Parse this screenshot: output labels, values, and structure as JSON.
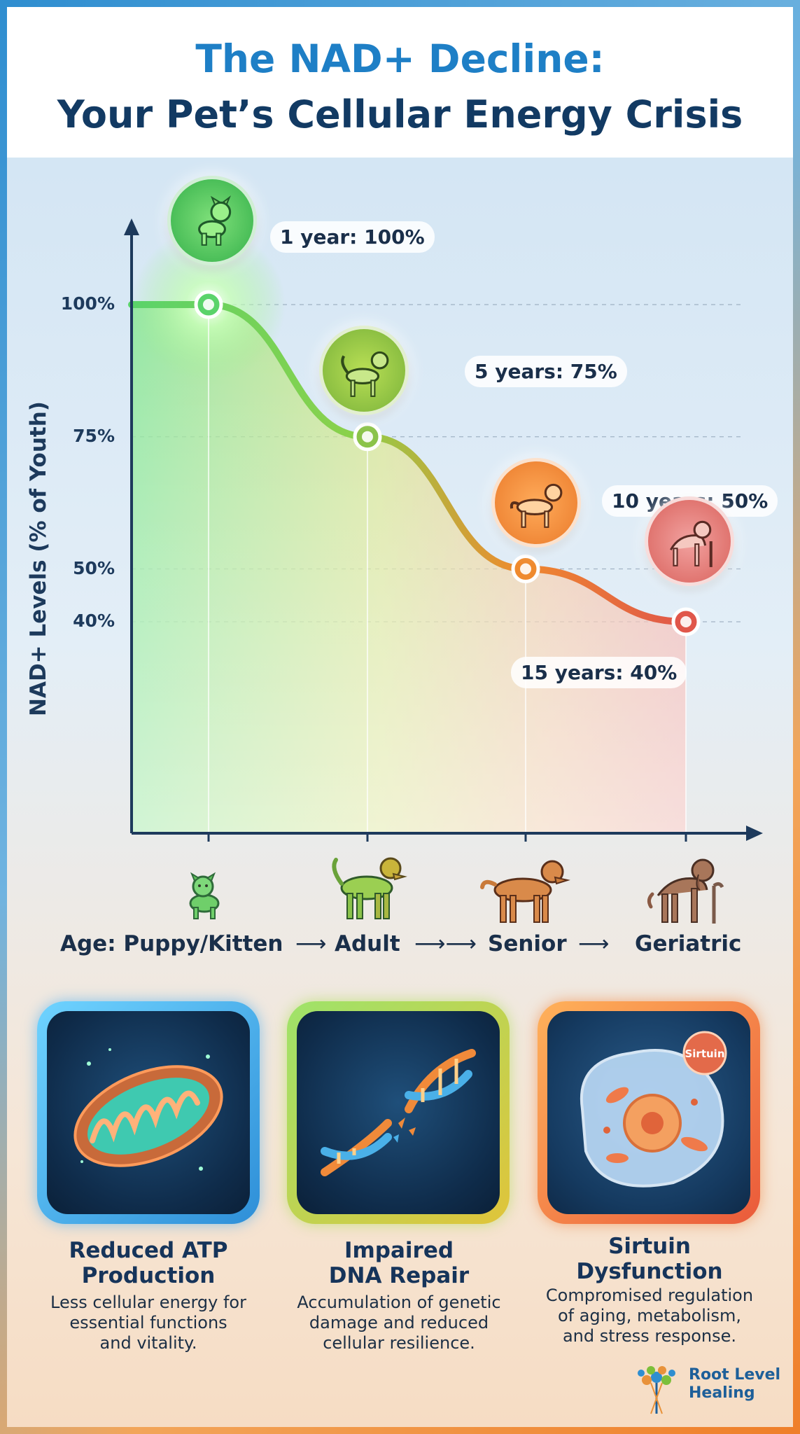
{
  "header": {
    "title_line1": "The NAD+ Decline:",
    "title_line2": "Your Pet’s Cellular Energy Crisis"
  },
  "colors": {
    "title_blue": "#1e7fc6",
    "navy": "#123a63",
    "green": "#5ad36a",
    "yellow_green": "#9ccc45",
    "orange": "#ef8a2e",
    "red": "#e0564a"
  },
  "chart_data": {
    "type": "area",
    "title": "",
    "xlabel": "",
    "ylabel": "NAD+ Levels (% of Youth)",
    "y_ticks": [
      "100%",
      "75%",
      "50%",
      "40%"
    ],
    "y_tick_values": [
      100,
      75,
      50,
      40
    ],
    "ylim": [
      0,
      100
    ],
    "x": [
      1,
      5,
      10,
      15
    ],
    "series": [
      {
        "values": [
          100,
          75,
          50,
          40
        ]
      }
    ],
    "annotations": [
      {
        "label": "1 year: 100%",
        "x": 1,
        "y": 100,
        "icon": "puppy-icon",
        "color": "#5ad36a"
      },
      {
        "label": "5 years: 75%",
        "x": 5,
        "y": 75,
        "icon": "adult-dog-icon",
        "color": "#8bc34a"
      },
      {
        "label": "10 years: 50%",
        "x": 10,
        "y": 50,
        "icon": "senior-dog-icon",
        "color": "#ef8a2e"
      },
      {
        "label": "15 years: 40%",
        "x": 15,
        "y": 40,
        "icon": "geriatric-dog-icon",
        "color": "#e0564a"
      }
    ],
    "grid": "dashed horizontal at ticks",
    "legend": "none"
  },
  "age_axis": {
    "label": "Age: Puppy/Kitten",
    "stages": [
      "Adult",
      "Senior",
      "Geriatric"
    ],
    "arrow": "⟶"
  },
  "cards": [
    {
      "title_line1": "Reduced ATP",
      "title_line2": "Production",
      "desc_line1": "Less cellular energy for",
      "desc_line2": "essential functions",
      "desc_line3": "and vitality.",
      "icon": "mitochondria-icon",
      "border_color": "#3aa9e8"
    },
    {
      "title_line1": "Impaired",
      "title_line2": "DNA Repair",
      "desc_line1": "Accumulation of genetic",
      "desc_line2": "damage and reduced",
      "desc_line3": "cellular resilience.",
      "icon": "dna-icon",
      "border_color": "#8cc63f"
    },
    {
      "title_line1": "Sirtuin",
      "title_line2": "Dysfunction",
      "desc_line1": "Compromised regulation",
      "desc_line2": "of aging, metabolism,",
      "desc_line3": "and stress response.",
      "icon": "cell-icon",
      "badge_label": "Sirtuin",
      "border_color": "#ef7f2a"
    }
  ],
  "brand": {
    "line1": "Root Level",
    "line2": "Healing",
    "icon": "tree-dna-logo-icon"
  }
}
